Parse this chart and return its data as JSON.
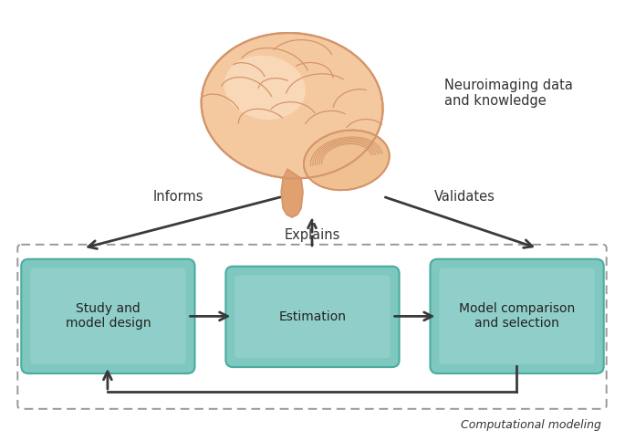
{
  "background_color": "#ffffff",
  "box_fill": "#7ec8c0",
  "box_fill_light": "#a8d8d4",
  "box_edge_color": "#4aaca0",
  "box_text_color": "#222222",
  "arrow_color": "#3a3a3a",
  "dashed_border_color": "#999999",
  "label_color": "#333333",
  "brain_fill": "#f5c9a0",
  "brain_fill_light": "#fde8d0",
  "brain_outline": "#d4956a",
  "brain_stem_fill": "#e0a070",
  "cerebellum_fill": "#f0c090",
  "bottom_label": "Computational modeling",
  "top_label": "Neuroimaging data\nand knowledge",
  "informs_label": "Informs",
  "validates_label": "Validates",
  "explains_label": "Explains",
  "box1_label": "Study and\nmodel design",
  "box2_label": "Estimation",
  "box3_label": "Model comparison\nand selection",
  "fig_width": 6.85,
  "fig_height": 4.83,
  "dpi": 100
}
